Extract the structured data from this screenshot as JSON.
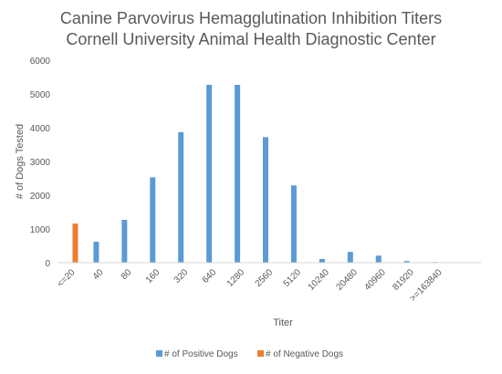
{
  "chart_data": {
    "type": "bar",
    "title": "Canine Parvovirus Hemagglutination Inhibition Titers",
    "subtitle": "Cornell University Animal Health Diagnostic Center",
    "xlabel": "Titer",
    "ylabel": "# of Dogs Tested",
    "ylim": [
      0,
      6000
    ],
    "yticks": [
      "0",
      "1000",
      "2000",
      "3000",
      "4000",
      "5000",
      "6000"
    ],
    "y_tick_values": [
      0,
      1000,
      2000,
      3000,
      4000,
      5000,
      6000
    ],
    "grid": false,
    "legend_position": "bottom",
    "categories": [
      "<=20",
      "40",
      "80",
      "160",
      "320",
      "640",
      "1280",
      "2560",
      "5120",
      "10240",
      "20480",
      "40960",
      "81920",
      ">=163840"
    ],
    "series": [
      {
        "name": "# of Positive Dogs",
        "color": "#5b9bd5",
        "values": [
          0,
          620,
          1270,
          2530,
          3870,
          5270,
          5270,
          3720,
          2290,
          110,
          320,
          210,
          50,
          20
        ]
      },
      {
        "name": "# of Negative Dogs",
        "color": "#ed7d31",
        "values": [
          1160,
          0,
          0,
          0,
          0,
          0,
          0,
          0,
          0,
          0,
          0,
          0,
          0,
          0
        ]
      }
    ],
    "colors": {
      "axis": "#d9d9d9",
      "text": "#595959"
    }
  }
}
